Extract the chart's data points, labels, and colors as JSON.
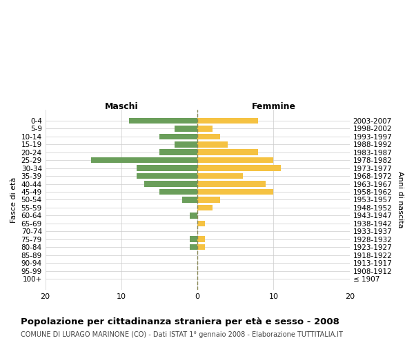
{
  "age_groups": [
    "100+",
    "95-99",
    "90-94",
    "85-89",
    "80-84",
    "75-79",
    "70-74",
    "65-69",
    "60-64",
    "55-59",
    "50-54",
    "45-49",
    "40-44",
    "35-39",
    "30-34",
    "25-29",
    "20-24",
    "15-19",
    "10-14",
    "5-9",
    "0-4"
  ],
  "birth_years": [
    "≤ 1907",
    "1908-1912",
    "1913-1917",
    "1918-1922",
    "1923-1927",
    "1928-1932",
    "1933-1937",
    "1938-1942",
    "1943-1947",
    "1948-1952",
    "1953-1957",
    "1958-1962",
    "1963-1967",
    "1968-1972",
    "1973-1977",
    "1978-1982",
    "1983-1987",
    "1988-1992",
    "1993-1997",
    "1998-2002",
    "2003-2007"
  ],
  "maschi": [
    0,
    0,
    0,
    0,
    1,
    1,
    0,
    0,
    1,
    0,
    2,
    5,
    7,
    8,
    8,
    14,
    5,
    3,
    5,
    3,
    9
  ],
  "femmine": [
    0,
    0,
    0,
    0,
    1,
    1,
    0,
    1,
    0,
    2,
    3,
    10,
    9,
    6,
    11,
    10,
    8,
    4,
    3,
    2,
    8
  ],
  "maschi_color": "#6a9e5a",
  "femmine_color": "#f5c242",
  "background_color": "#ffffff",
  "grid_color": "#cccccc",
  "center_line_color": "#888855",
  "title": "Popolazione per cittadinanza straniera per età e sesso - 2008",
  "subtitle": "COMUNE DI LURAGO MARINONE (CO) - Dati ISTAT 1° gennaio 2008 - Elaborazione TUTTITALIA.IT",
  "xlabel_left": "Maschi",
  "xlabel_right": "Femmine",
  "ylabel_left": "Fasce di età",
  "ylabel_right": "Anni di nascita",
  "xlim": 20
}
